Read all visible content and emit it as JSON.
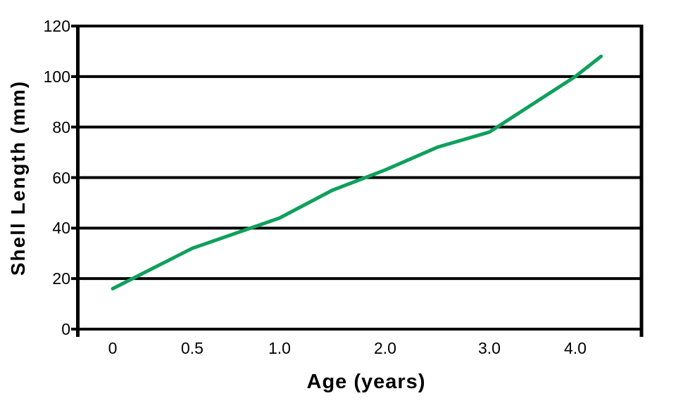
{
  "chart": {
    "y_axis_title": "Shell Length (mm)",
    "x_axis_title": "Age (years)",
    "colors": {
      "line": "#0fa05c",
      "axis": "#000000",
      "text": "#000000",
      "background": "#ffffff"
    }
  },
  "chart_data": {
    "type": "line",
    "title": "",
    "xlabel": "Age (years)",
    "ylabel": "Shell Length (mm)",
    "x_tick_labels": [
      "0",
      "0.5",
      "1.0",
      "2.0",
      "3.0",
      "4.0"
    ],
    "x_tick_values": [
      0,
      0.5,
      1.0,
      2.0,
      3.0,
      4.0
    ],
    "y_ticks": [
      0,
      20,
      40,
      60,
      80,
      100,
      120
    ],
    "ylim": [
      0,
      120
    ],
    "xlim": [
      -0.2,
      4.55
    ],
    "grid": "horizontal-only",
    "legend": "none",
    "series": [
      {
        "name": "Shell Length",
        "color": "#0fa05c",
        "x": [
          0,
          0.5,
          1.0,
          1.5,
          2.0,
          2.5,
          3.0,
          3.5,
          4.0,
          4.3
        ],
        "y": [
          16,
          32,
          44,
          55,
          63,
          72,
          78,
          89,
          100,
          108
        ]
      }
    ]
  }
}
